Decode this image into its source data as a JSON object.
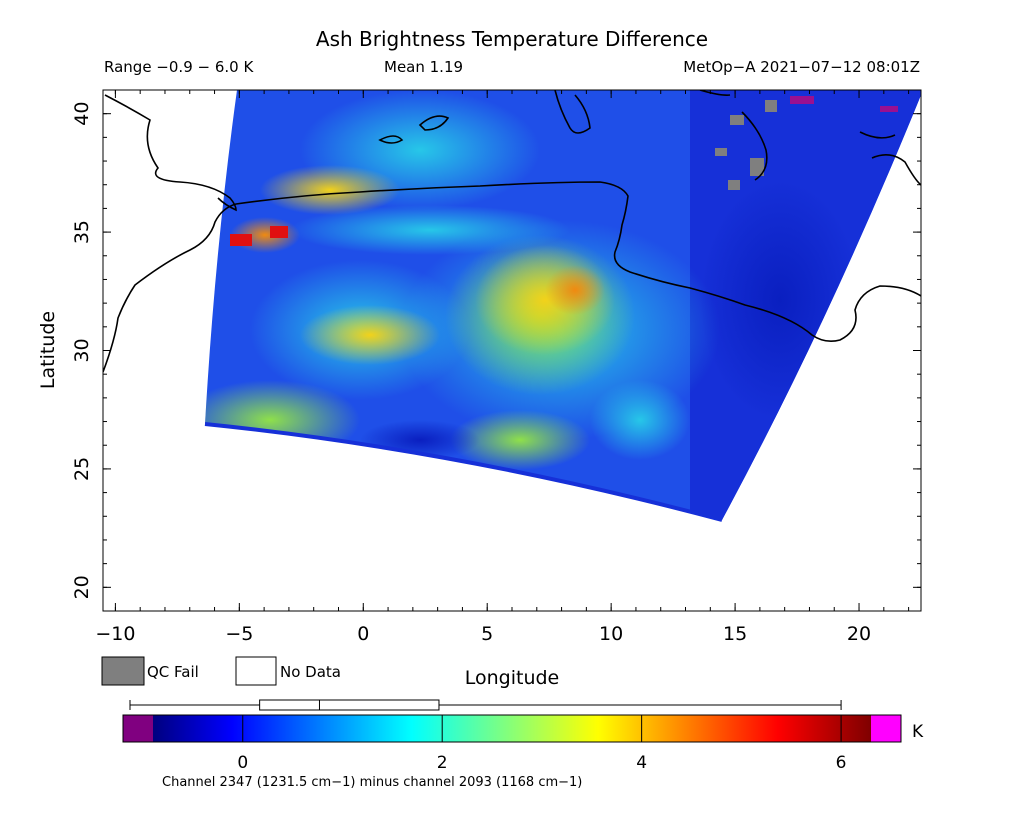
{
  "title": "Ash Brightness Temperature Difference",
  "stats": {
    "range": "Range −0.9 − 6.0 K",
    "mean": "Mean 1.19",
    "satellite_time": "MetOp−A 2021−07−12 08:01Z"
  },
  "axes": {
    "x_label": "Longitude",
    "y_label": "Latitude",
    "x_ticks": [
      "−10",
      "−5",
      "0",
      "5",
      "10",
      "15",
      "20"
    ],
    "y_ticks": [
      "40",
      "35",
      "30",
      "25",
      "20"
    ],
    "x_range": [
      -10.5,
      22.5
    ],
    "y_range": [
      19,
      41
    ]
  },
  "legend": {
    "qc_fail": "QC Fail",
    "no_data": "No Data",
    "qc_fail_color": "#7f7f7f",
    "no_data_color": "#ffffff"
  },
  "colorbar": {
    "unit": "K",
    "ticks": [
      "0",
      "2",
      "4",
      "6"
    ],
    "tick_values": [
      0,
      2,
      4,
      6
    ],
    "range": [
      -0.9,
      6.3
    ],
    "under_color": "#800080",
    "over_color": "#ff00ff",
    "caption": "Channel 2347 (1231.5 cm−1) minus channel 2093 (1168 cm−1)",
    "boxplot": {
      "min": -0.9,
      "q1": 0.4,
      "median": 1.0,
      "q3": 2.8,
      "max": 6.0
    }
  }
}
